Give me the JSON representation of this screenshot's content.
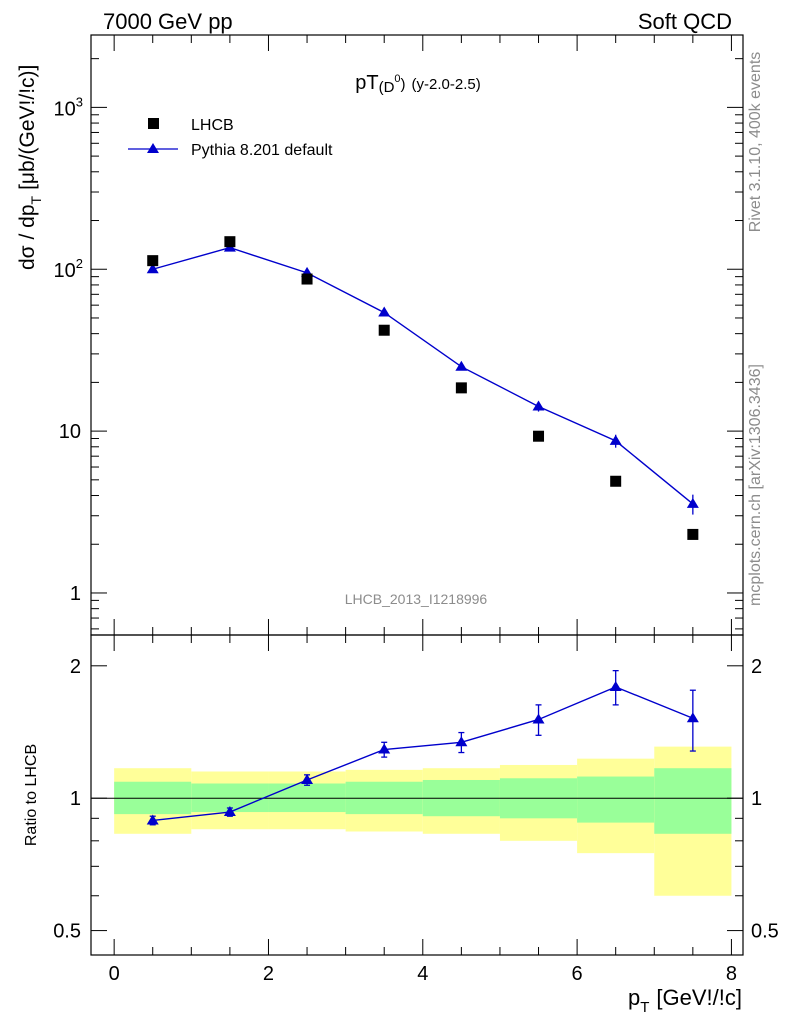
{
  "header": {
    "left": "7000 GeV pp",
    "right": "Soft QCD"
  },
  "side_labels": {
    "rivet": "Rivet 3.1.10,  400k events",
    "mcplots": "mcplots.cern.ch [arXiv:1306.3436]"
  },
  "watermark": "LHCB_2013_I1218996",
  "colors": {
    "data": "#000000",
    "mc": "#0000cc",
    "band_inner": "#99ff99",
    "band_outer": "#ffff99",
    "ratio_line": "#000000"
  },
  "chart_data": [
    {
      "type": "scatter",
      "title": {
        "main": "pT",
        "sub": "(D",
        "sup": "0",
        "close": ")",
        "range": "(y-2.0-2.5)"
      },
      "ylabel": {
        "main": "dσ / dp",
        "sub": "T",
        "unit": "[μb/(GeV!/!c)]"
      },
      "yscale": "log",
      "ylim": [
        0.55,
        2800
      ],
      "xlim": [
        -0.3,
        8.15
      ],
      "y_ticks": [
        {
          "value": 1,
          "label": "1"
        },
        {
          "value": 10,
          "label": "10"
        },
        {
          "value": 100,
          "base": "10",
          "exp": "2"
        },
        {
          "value": 1000,
          "base": "10",
          "exp": "3"
        }
      ],
      "legend": {
        "placement": "top-left"
      },
      "series": [
        {
          "name": "LHCB",
          "marker": "square",
          "x": [
            0.5,
            1.5,
            2.5,
            3.5,
            4.5,
            5.5,
            6.5,
            7.5
          ],
          "y": [
            113,
            148,
            87,
            42,
            18.5,
            9.3,
            4.9,
            2.3
          ]
        },
        {
          "name": "Pythia 8.201 default",
          "marker": "triangle",
          "line": true,
          "x": [
            0.5,
            1.5,
            2.5,
            3.5,
            4.5,
            5.5,
            6.5,
            7.5
          ],
          "y": [
            100,
            136,
            95,
            54,
            25,
            14.2,
            8.7,
            3.55
          ],
          "err": [
            3,
            4,
            3,
            2,
            1,
            1.0,
            0.8,
            0.5
          ]
        }
      ]
    },
    {
      "type": "line",
      "ylabel": "Ratio to LHCB",
      "yscale": "log",
      "ylim": [
        0.44,
        2.35
      ],
      "xlim": [
        -0.3,
        8.15
      ],
      "xlabel": {
        "main": "p",
        "sub": "T",
        "unit": "[GeV!/!c]"
      },
      "x_ticks": [
        0,
        2,
        4,
        6,
        8
      ],
      "y_ticks": [
        0.5,
        1,
        2
      ],
      "reference": 1,
      "bins": [
        [
          0,
          1
        ],
        [
          1,
          2
        ],
        [
          2,
          3
        ],
        [
          3,
          4
        ],
        [
          4,
          5
        ],
        [
          5,
          6
        ],
        [
          6,
          7
        ],
        [
          7,
          8
        ]
      ],
      "band_inner": [
        [
          0.92,
          1.09
        ],
        [
          0.93,
          1.08
        ],
        [
          0.93,
          1.08
        ],
        [
          0.92,
          1.09
        ],
        [
          0.91,
          1.1
        ],
        [
          0.9,
          1.11
        ],
        [
          0.88,
          1.12
        ],
        [
          0.83,
          1.17
        ]
      ],
      "band_outer": [
        [
          0.83,
          1.17
        ],
        [
          0.85,
          1.15
        ],
        [
          0.85,
          1.15
        ],
        [
          0.84,
          1.16
        ],
        [
          0.83,
          1.17
        ],
        [
          0.8,
          1.19
        ],
        [
          0.75,
          1.23
        ],
        [
          0.6,
          1.31
        ]
      ],
      "series": [
        {
          "name": "Pythia 8.201 default",
          "x": [
            0.5,
            1.5,
            2.5,
            3.5,
            4.5,
            5.5,
            6.5,
            7.5
          ],
          "y": [
            0.89,
            0.93,
            1.1,
            1.29,
            1.34,
            1.51,
            1.79,
            1.52
          ],
          "err": [
            0.02,
            0.02,
            0.03,
            0.05,
            0.07,
            0.12,
            0.16,
            0.24
          ]
        }
      ]
    }
  ]
}
